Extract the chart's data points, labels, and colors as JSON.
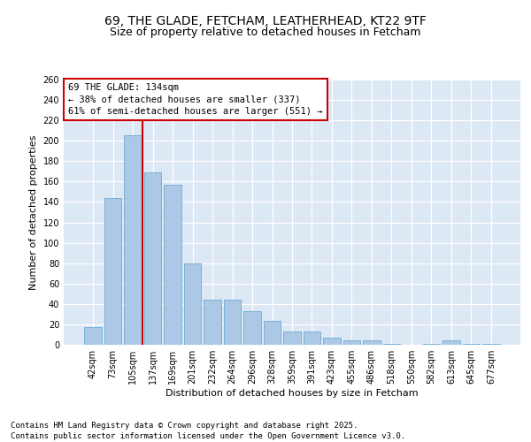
{
  "title1": "69, THE GLADE, FETCHAM, LEATHERHEAD, KT22 9TF",
  "title2": "Size of property relative to detached houses in Fetcham",
  "xlabel": "Distribution of detached houses by size in Fetcham",
  "ylabel": "Number of detached properties",
  "categories": [
    "42sqm",
    "73sqm",
    "105sqm",
    "137sqm",
    "169sqm",
    "201sqm",
    "232sqm",
    "264sqm",
    "296sqm",
    "328sqm",
    "359sqm",
    "391sqm",
    "423sqm",
    "455sqm",
    "486sqm",
    "518sqm",
    "550sqm",
    "582sqm",
    "613sqm",
    "645sqm",
    "677sqm"
  ],
  "values": [
    17,
    144,
    205,
    169,
    157,
    80,
    44,
    44,
    33,
    23,
    13,
    13,
    7,
    4,
    4,
    1,
    0,
    1,
    4,
    1,
    1
  ],
  "bar_color": "#adc8e6",
  "bar_edge_color": "#6aaad4",
  "vline_x": 2.5,
  "vline_color": "#cc0000",
  "annotation_text": "69 THE GLADE: 134sqm\n← 38% of detached houses are smaller (337)\n61% of semi-detached houses are larger (551) →",
  "annotation_box_color": "#ffffff",
  "annotation_box_edge": "#cc0000",
  "ylim": [
    0,
    260
  ],
  "yticks": [
    0,
    20,
    40,
    60,
    80,
    100,
    120,
    140,
    160,
    180,
    200,
    220,
    240,
    260
  ],
  "bg_color": "#dde8f5",
  "footer_text": "Contains HM Land Registry data © Crown copyright and database right 2025.\nContains public sector information licensed under the Open Government Licence v3.0.",
  "title_fontsize": 10,
  "subtitle_fontsize": 9,
  "axis_label_fontsize": 8,
  "tick_fontsize": 7,
  "annotation_fontsize": 7.5,
  "footer_fontsize": 6.5
}
